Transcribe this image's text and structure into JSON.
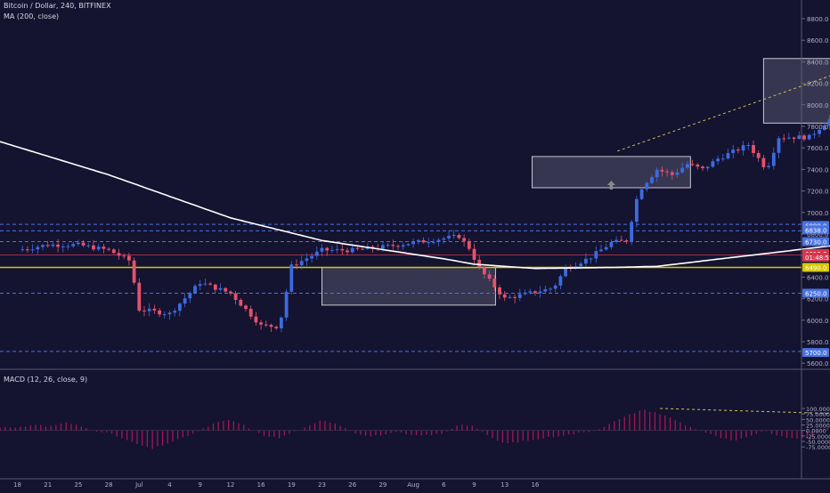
{
  "header": {
    "symbol_line": "Bitcoin / Dollar, 240, BITFINEX",
    "indicator_line": "MA (200, close)"
  },
  "macd_header": "MACD (12, 26, close, 9)",
  "colors": {
    "background": "#141330",
    "up_candle": "#3d6ae0",
    "down_candle": "#e4536b",
    "ma_line": "#ffffff",
    "dashed_level": "#4a72e0",
    "red_level": "#d6374f",
    "yellow_level": "#d6c700",
    "trendline": "#d4c35a",
    "channel": "#8b8b9c",
    "macd_hist": "#a01856",
    "arrow_up": "#8a8a8a",
    "arrow_down": "#e0485a"
  },
  "chart_data": [
    {
      "type": "candlestick",
      "title": "Bitcoin / Dollar, 240, BITFINEX",
      "x_tick_labels": [
        "18",
        "21",
        "25",
        "28",
        "Jul",
        "4",
        "9",
        "12",
        "16",
        "19",
        "23",
        "26",
        "29",
        "Aug",
        "6",
        "9",
        "13",
        "16"
      ],
      "y_ticks": [
        5600,
        5800,
        6000,
        6200,
        6400,
        6600,
        6800,
        7000,
        7200,
        7400,
        7600,
        7800,
        8000,
        8200,
        8400,
        8600,
        8800
      ],
      "ylim": [
        5540,
        8940
      ],
      "price_labels": [
        {
          "text": "6880.0",
          "value": 6880,
          "style": "blue"
        },
        {
          "text": "6838.0",
          "value": 6838,
          "style": "blue"
        },
        {
          "text": "6730.0",
          "value": 6730,
          "style": "blue"
        },
        {
          "text": "6619.0",
          "value": 6619,
          "style": "red"
        },
        {
          "text": "01:48:55",
          "value": 6585,
          "style": "red"
        },
        {
          "text": "6490.0",
          "value": 6490,
          "style": "yellow"
        },
        {
          "text": "6250.0",
          "value": 6250,
          "style": "blue"
        },
        {
          "text": "5700.0",
          "value": 5700,
          "style": "blue"
        }
      ],
      "horizontal_levels": [
        {
          "value": 6890,
          "style": "dashed"
        },
        {
          "value": 6830,
          "style": "dashed"
        },
        {
          "value": 6730,
          "style": "dashed"
        },
        {
          "value": 6250,
          "style": "dashed"
        },
        {
          "value": 5710,
          "style": "dashed"
        },
        {
          "value": 6605,
          "style": "red"
        },
        {
          "value": 6490,
          "style": "yellow"
        }
      ],
      "boxes": [
        {
          "x0": 10,
          "x1": 15.7,
          "y0": 6140,
          "y1": 6490
        },
        {
          "x0": 16.9,
          "x1": 22.1,
          "y0": 7230,
          "y1": 7520
        },
        {
          "x0": 24.5,
          "x1": 30.6,
          "y0": 7830,
          "y1": 8430
        },
        {
          "x0": 33.7,
          "x1": 37.2,
          "y0": 6840,
          "y1": 7110
        }
      ],
      "series": [
        {
          "name": "price",
          "kind": "anchor_path",
          "points": [
            [
              0,
              6650
            ],
            [
              1,
              6700
            ],
            [
              2,
              6700
            ],
            [
              3,
              6650
            ],
            [
              3.7,
              6550
            ],
            [
              4,
              6100
            ],
            [
              5,
              6060
            ],
            [
              6,
              6350
            ],
            [
              7,
              6250
            ],
            [
              8,
              5950
            ],
            [
              8.6,
              5940
            ],
            [
              9,
              6500
            ],
            [
              10,
              6650
            ],
            [
              11,
              6650
            ],
            [
              12,
              6680
            ],
            [
              13,
              6720
            ],
            [
              14.5,
              6780
            ],
            [
              14.9,
              6650
            ],
            [
              15.1,
              6500
            ],
            [
              16,
              6200
            ],
            [
              17.6,
              6300
            ],
            [
              18,
              6480
            ],
            [
              18.8,
              6580
            ],
            [
              19.5,
              6720
            ],
            [
              20,
              6740
            ],
            [
              20.4,
              7200
            ],
            [
              21,
              7400
            ],
            [
              21.5,
              7350
            ],
            [
              22,
              7450
            ],
            [
              22.5,
              7400
            ],
            [
              23,
              7500
            ],
            [
              24,
              7630
            ],
            [
              24.6,
              7400
            ],
            [
              25,
              7700
            ],
            [
              26,
              7700
            ],
            [
              27,
              7950
            ],
            [
              27.9,
              8450
            ],
            [
              28.2,
              8300
            ],
            [
              29,
              8250
            ],
            [
              30,
              8200
            ],
            [
              31,
              8150
            ],
            [
              32,
              8100
            ],
            [
              32.8,
              7850
            ],
            [
              33.3,
              7700
            ],
            [
              34,
              7400
            ],
            [
              35,
              7300
            ],
            [
              36,
              7250
            ],
            [
              36.8,
              6950
            ],
            [
              37.5,
              7000
            ],
            [
              38.5,
              6950
            ],
            [
              39.2,
              6990
            ],
            [
              40,
              6880
            ],
            [
              40.5,
              6500
            ]
          ]
        }
      ],
      "moving_average": {
        "name": "MA (200, close)",
        "points": [
          [
            -1.4,
            7730
          ],
          [
            3,
            7350
          ],
          [
            7,
            6950
          ],
          [
            10,
            6740
          ],
          [
            14,
            6570
          ],
          [
            15,
            6520
          ],
          [
            17,
            6480
          ],
          [
            19.6,
            6490
          ],
          [
            21,
            6500
          ],
          [
            24,
            6600
          ],
          [
            27,
            6700
          ],
          [
            30,
            6850
          ],
          [
            34,
            7050
          ],
          [
            38,
            7200
          ],
          [
            40.6,
            7230
          ]
        ]
      },
      "annotations": {
        "arrows_up": [
          {
            "x": 19.5,
            "value": 7230
          },
          {
            "x": 31.2,
            "value": 7800
          }
        ],
        "arrows_down": [
          {
            "x": 33.1,
            "value": 7820
          },
          {
            "x": 42,
            "value": 6920
          }
        ],
        "trendline": [
          [
            19.7,
            7570
          ],
          [
            29.3,
            8530
          ]
        ],
        "channel_lines": [
          [
            [
              32.9,
              8170
            ],
            [
              47.5,
              5960
            ]
          ],
          [
            [
              32.8,
              7620
            ],
            [
              45.7,
              5470
            ]
          ]
        ]
      }
    },
    {
      "type": "bar",
      "title": "MACD (12, 26, close, 9)",
      "y_tick_labels": [
        "100.0000",
        "75.0000",
        "50.0000",
        "25.0000",
        "0.0000",
        "-25.0000",
        "-50.0000",
        "-75.0000"
      ],
      "ylim": [
        -100,
        107
      ],
      "histogram_anchors": [
        [
          -1.4,
          25
        ],
        [
          0,
          10
        ],
        [
          0.5,
          28
        ],
        [
          1,
          18
        ],
        [
          1.6,
          35
        ],
        [
          2,
          22
        ],
        [
          2.5,
          0
        ],
        [
          3,
          -12
        ],
        [
          3.5,
          -40
        ],
        [
          4,
          -65
        ],
        [
          4.4,
          -85
        ],
        [
          5,
          -55
        ],
        [
          5.5,
          -30
        ],
        [
          6,
          0
        ],
        [
          6.5,
          35
        ],
        [
          7,
          48
        ],
        [
          7.5,
          20
        ],
        [
          8,
          -20
        ],
        [
          8.6,
          -35
        ],
        [
          9,
          -10
        ],
        [
          9.6,
          20
        ],
        [
          10,
          48
        ],
        [
          10.5,
          30
        ],
        [
          11,
          -5
        ],
        [
          11.5,
          -28
        ],
        [
          12,
          -20
        ],
        [
          12.5,
          -8
        ],
        [
          13,
          -25
        ],
        [
          14,
          -15
        ],
        [
          14.5,
          30
        ],
        [
          15,
          20
        ],
        [
          15.5,
          -30
        ],
        [
          16,
          -60
        ],
        [
          17,
          -42
        ],
        [
          17.5,
          -30
        ],
        [
          18.3,
          -15
        ],
        [
          19,
          0
        ],
        [
          19.5,
          35
        ],
        [
          20,
          65
        ],
        [
          20.5,
          95
        ],
        [
          21,
          80
        ],
        [
          21.5,
          55
        ],
        [
          22,
          20
        ],
        [
          22.5,
          -5
        ],
        [
          23,
          -30
        ],
        [
          23.5,
          -50
        ],
        [
          24,
          -30
        ],
        [
          24.5,
          0
        ],
        [
          25,
          -28
        ],
        [
          26,
          -40
        ],
        [
          26.4,
          0
        ],
        [
          27,
          35
        ],
        [
          27.5,
          60
        ],
        [
          28,
          45
        ],
        [
          28.5,
          15
        ],
        [
          29,
          -20
        ],
        [
          30,
          -65
        ],
        [
          30.5,
          -35
        ],
        [
          31,
          -20
        ],
        [
          31.5,
          0
        ],
        [
          32,
          -10
        ],
        [
          32.5,
          -30
        ],
        [
          33,
          -20
        ],
        [
          33.5,
          -50
        ],
        [
          34,
          -70
        ],
        [
          34.5,
          -60
        ],
        [
          35,
          -40
        ],
        [
          35.5,
          0
        ],
        [
          36,
          25
        ],
        [
          36.5,
          0
        ],
        [
          37,
          -35
        ],
        [
          37.5,
          -15
        ],
        [
          38,
          0
        ],
        [
          38.5,
          20
        ],
        [
          39,
          -5
        ],
        [
          39.5,
          25
        ],
        [
          40,
          35
        ],
        [
          40.3,
          15
        ],
        [
          40.5,
          -20
        ]
      ],
      "divergence_line": [
        [
          21.1,
          100
        ],
        [
          29.7,
          65
        ]
      ]
    }
  ]
}
